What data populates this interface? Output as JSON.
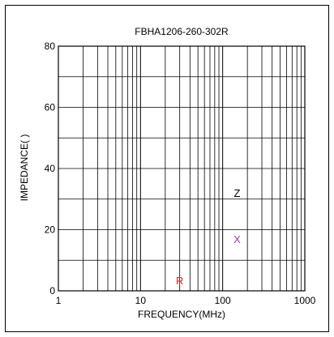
{
  "chart_data": {
    "type": "line",
    "title": "FBHA1206-260-302R",
    "xlabel": "FREQUENCY(MHz)",
    "ylabel": "IMPEDANCE(  )",
    "xscale": "log",
    "xlim": [
      1,
      1000
    ],
    "ylim": [
      0,
      80
    ],
    "x_ticks": [
      "1",
      "10",
      "100",
      "1000"
    ],
    "y_ticks": [
      "0",
      "20",
      "40",
      "60",
      "80"
    ],
    "grid": true,
    "series": [
      {
        "name": "Z",
        "color": "#000000",
        "x": [],
        "y": []
      },
      {
        "name": "X",
        "color": "#9b3fa0",
        "x": [],
        "y": []
      },
      {
        "name": "R",
        "color": "#d42b2b",
        "x": [],
        "y": []
      }
    ],
    "series_labels": [
      {
        "text": "Z",
        "x": 150,
        "y": 32,
        "color": "#000000"
      },
      {
        "text": "X",
        "x": 150,
        "y": 17,
        "color": "#9b3fa0"
      },
      {
        "text": "R",
        "x": 30,
        "y": 3.5,
        "color": "#d42b2b"
      }
    ]
  }
}
